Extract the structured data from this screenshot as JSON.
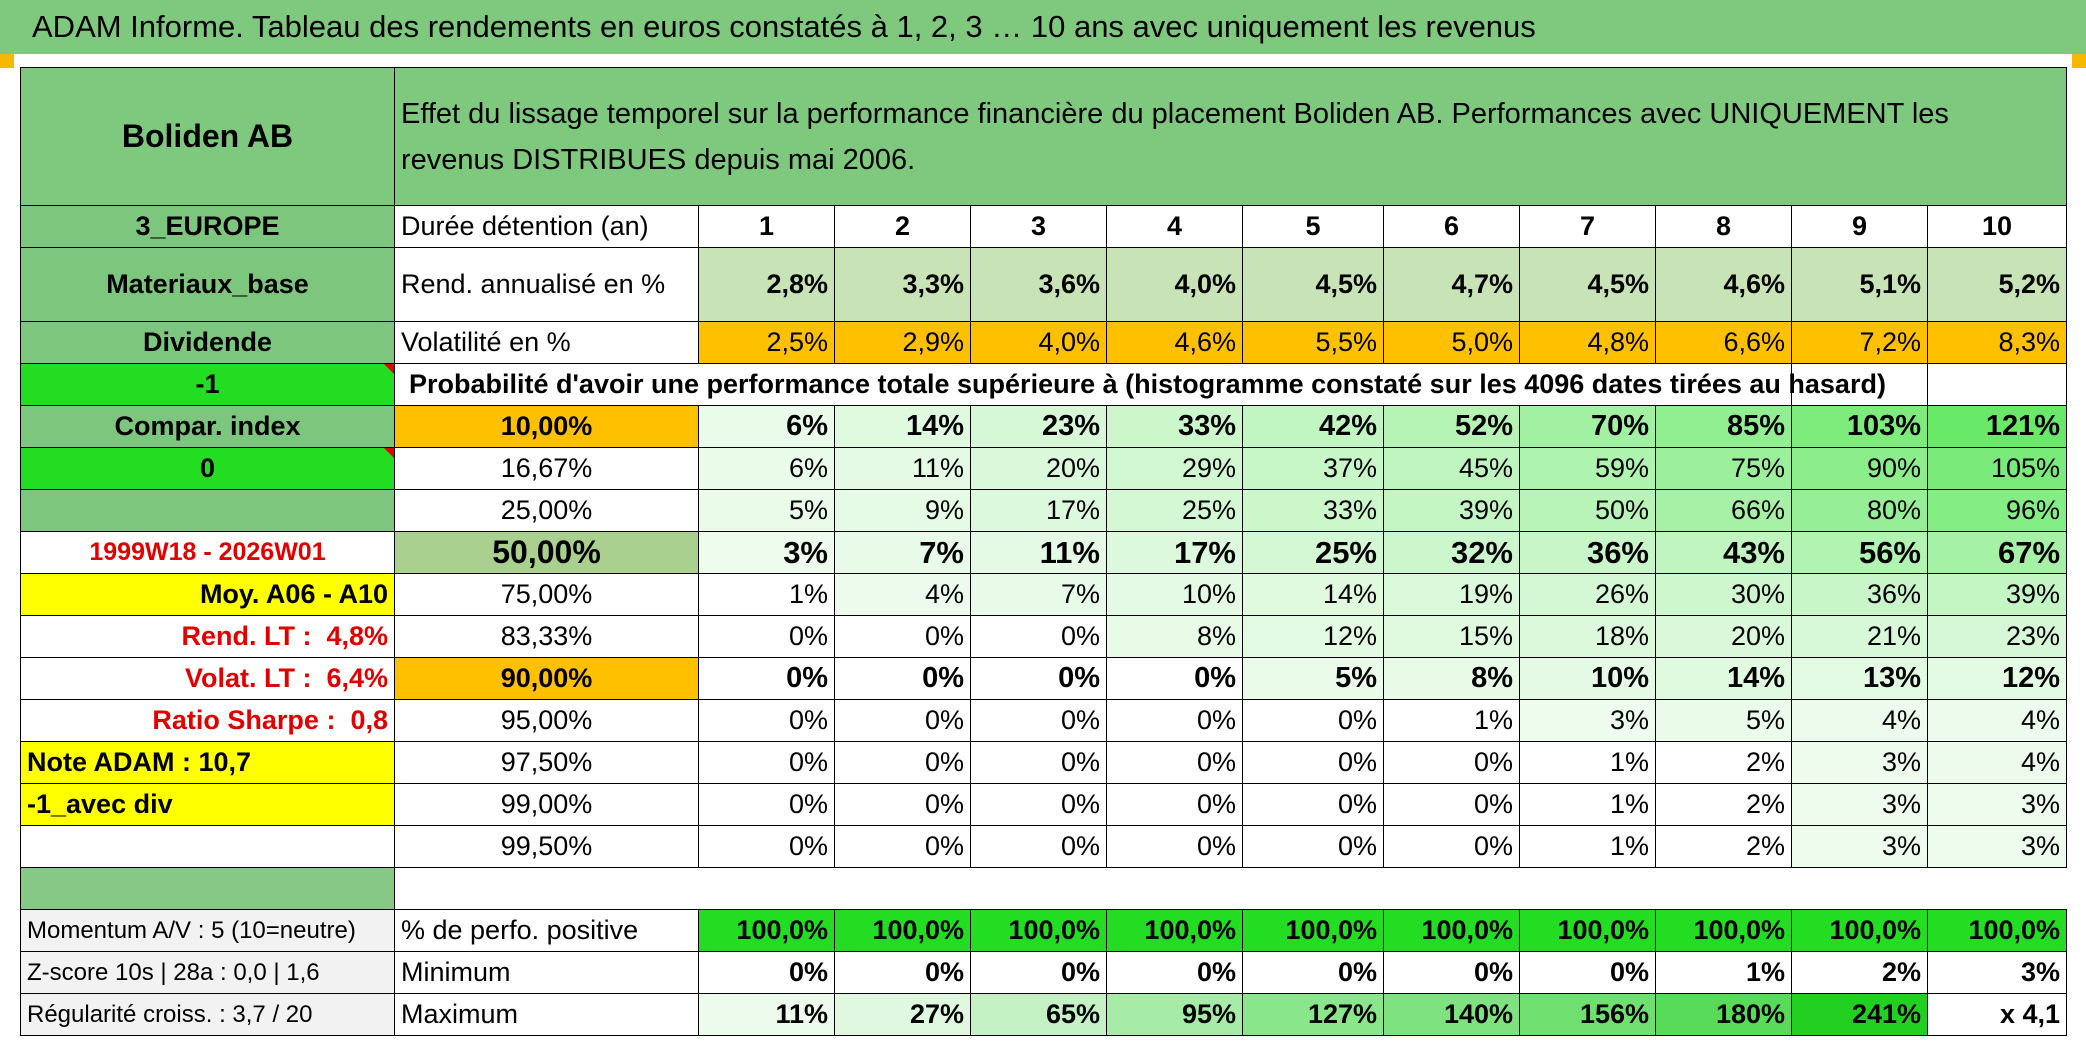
{
  "title": "ADAM Informe. Tableau des rendements en euros constatés à 1, 2, 3 … 10 ans avec uniquement les revenus",
  "header": {
    "company": "Boliden AB",
    "description": "Effet du lissage temporel sur la performance financière du placement Boliden AB. Performances avec UNIQUEMENT les revenus DISTRIBUES depuis mai 2006."
  },
  "left_labels": {
    "region": "3_EUROPE",
    "sector": "Materiaux_base",
    "distribution": "Dividende",
    "flag1": "-1",
    "compar_index": "Compar. index",
    "flag2": "0",
    "period": "1999W18 - 2026W01",
    "moy": "Moy. A06 - A10",
    "rend_lt_label": "Rend. LT :",
    "rend_lt_value": "4,8%",
    "volat_lt_label": "Volat. LT :",
    "volat_lt_value": "6,4%",
    "sharpe_label": "Ratio Sharpe :",
    "sharpe_value": "0,8",
    "note_adam": "Note ADAM : 10,7",
    "avec_div": "-1_avec div",
    "momentum": "Momentum A/V : 5 (10=neutre)",
    "zscore": "Z-score 10s | 28a : 0,0 | 1,6",
    "regularite": "Régularité croiss. : 3,7 / 20"
  },
  "row_labels": {
    "duration": "Durée détention (an)",
    "rend": "Rend. annualisé en %",
    "volat": "Volatilité en %",
    "proba": "Probabilité d'avoir une performance totale supérieure à (histogramme constaté sur les 4096 dates tirées au hasard)",
    "positive": "% de perfo. positive",
    "minimum": "Minimum",
    "maximum": "Maximum"
  },
  "years": [
    "1",
    "2",
    "3",
    "4",
    "5",
    "6",
    "7",
    "8",
    "9",
    "10"
  ],
  "rendement": [
    "2,8%",
    "3,3%",
    "3,6%",
    "4,0%",
    "4,5%",
    "4,7%",
    "4,5%",
    "4,6%",
    "5,1%",
    "5,2%"
  ],
  "volatilite": [
    "2,5%",
    "2,9%",
    "4,0%",
    "4,6%",
    "5,5%",
    "5,0%",
    "4,8%",
    "6,6%",
    "7,2%",
    "8,3%"
  ],
  "probabilities": [
    {
      "threshold": "10,00%",
      "values": [
        "6%",
        "14%",
        "23%",
        "33%",
        "42%",
        "52%",
        "70%",
        "85%",
        "103%",
        "121%"
      ]
    },
    {
      "threshold": "16,67%",
      "values": [
        "6%",
        "11%",
        "20%",
        "29%",
        "37%",
        "45%",
        "59%",
        "75%",
        "90%",
        "105%"
      ]
    },
    {
      "threshold": "25,00%",
      "values": [
        "5%",
        "9%",
        "17%",
        "25%",
        "33%",
        "39%",
        "50%",
        "66%",
        "80%",
        "96%"
      ]
    },
    {
      "threshold": "50,00%",
      "values": [
        "3%",
        "7%",
        "11%",
        "17%",
        "25%",
        "32%",
        "36%",
        "43%",
        "56%",
        "67%"
      ]
    },
    {
      "threshold": "75,00%",
      "values": [
        "1%",
        "4%",
        "7%",
        "10%",
        "14%",
        "19%",
        "26%",
        "30%",
        "36%",
        "39%"
      ]
    },
    {
      "threshold": "83,33%",
      "values": [
        "0%",
        "0%",
        "0%",
        "8%",
        "12%",
        "15%",
        "18%",
        "20%",
        "21%",
        "23%"
      ]
    },
    {
      "threshold": "90,00%",
      "values": [
        "0%",
        "0%",
        "0%",
        "0%",
        "5%",
        "8%",
        "10%",
        "14%",
        "13%",
        "12%"
      ]
    },
    {
      "threshold": "95,00%",
      "values": [
        "0%",
        "0%",
        "0%",
        "0%",
        "0%",
        "1%",
        "3%",
        "5%",
        "4%",
        "4%"
      ]
    },
    {
      "threshold": "97,50%",
      "values": [
        "0%",
        "0%",
        "0%",
        "0%",
        "0%",
        "0%",
        "1%",
        "2%",
        "3%",
        "4%"
      ]
    },
    {
      "threshold": "99,00%",
      "values": [
        "0%",
        "0%",
        "0%",
        "0%",
        "0%",
        "0%",
        "1%",
        "2%",
        "3%",
        "3%"
      ]
    },
    {
      "threshold": "99,50%",
      "values": [
        "0%",
        "0%",
        "0%",
        "0%",
        "0%",
        "0%",
        "1%",
        "2%",
        "3%",
        "3%"
      ]
    }
  ],
  "positive": [
    "100,0%",
    "100,0%",
    "100,0%",
    "100,0%",
    "100,0%",
    "100,0%",
    "100,0%",
    "100,0%",
    "100,0%",
    "100,0%"
  ],
  "minimum": [
    "0%",
    "0%",
    "0%",
    "0%",
    "0%",
    "0%",
    "0%",
    "1%",
    "2%",
    "3%"
  ],
  "maximum": [
    "11%",
    "27%",
    "65%",
    "95%",
    "127%",
    "140%",
    "156%",
    "180%",
    "241%",
    "x 4,1"
  ],
  "colors": {
    "header_green": "#7fc97f",
    "bright_green": "#22dd22",
    "orange": "#ffc000",
    "yellow": "#ffff00",
    "red_text": "#e00000"
  }
}
